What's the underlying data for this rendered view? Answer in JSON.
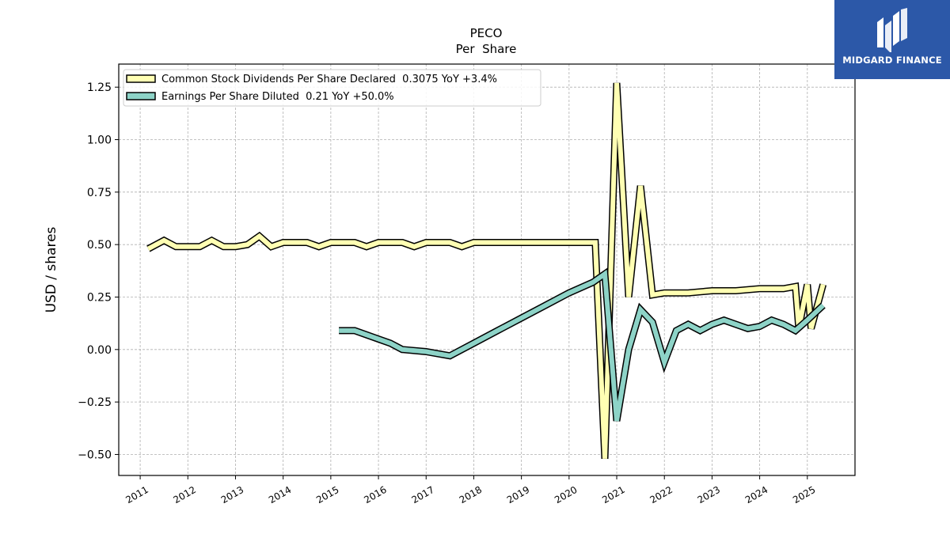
{
  "brand": {
    "name": "MIDGARD FINANCE",
    "bg_color": "#2c58a8"
  },
  "chart_data": {
    "type": "line",
    "title": "PECO",
    "subtitle": "Per  Share",
    "xlabel": "",
    "ylabel": "USD / shares",
    "xlim": [
      2010.55,
      2026.0
    ],
    "ylim": [
      -0.6,
      1.36
    ],
    "x_ticks": [
      "2011",
      "2012",
      "2013",
      "2014",
      "2015",
      "2016",
      "2017",
      "2018",
      "2019",
      "2020",
      "2021",
      "2022",
      "2023",
      "2024",
      "2025"
    ],
    "y_ticks": [
      1.25,
      1.0,
      0.75,
      0.5,
      0.25,
      0.0,
      -0.25,
      -0.5
    ],
    "y_tick_labels": [
      "1.25",
      "1.00",
      "0.75",
      "0.50",
      "0.25",
      "0.00",
      "−0.25",
      "−0.50"
    ],
    "grid": true,
    "legend_position": "top-left",
    "series": [
      {
        "name": "Common Stock Dividends Per Share Declared  0.3075 YoY +3.4%",
        "color": "#ffffb3",
        "x": [
          2011.17,
          2011.5,
          2011.75,
          2012.0,
          2012.25,
          2012.5,
          2012.75,
          2013.0,
          2013.25,
          2013.5,
          2013.75,
          2014.0,
          2014.25,
          2014.5,
          2014.75,
          2015.0,
          2015.25,
          2015.5,
          2015.75,
          2016.0,
          2016.25,
          2016.5,
          2016.75,
          2017.0,
          2017.25,
          2017.5,
          2017.75,
          2018.0,
          2018.5,
          2019.0,
          2019.5,
          2020.0,
          2020.25,
          2020.5,
          2020.55,
          2020.75,
          2021.0,
          2021.25,
          2021.5,
          2021.75,
          2022.0,
          2022.5,
          2023.0,
          2023.5,
          2024.0,
          2024.5,
          2024.75,
          2024.82,
          2025.0,
          2025.08,
          2025.33
        ],
        "values": [
          0.48,
          0.52,
          0.49,
          0.49,
          0.49,
          0.52,
          0.49,
          0.49,
          0.5,
          0.54,
          0.49,
          0.51,
          0.51,
          0.51,
          0.49,
          0.51,
          0.51,
          0.51,
          0.49,
          0.51,
          0.51,
          0.51,
          0.49,
          0.51,
          0.51,
          0.51,
          0.49,
          0.51,
          0.51,
          0.51,
          0.51,
          0.51,
          0.51,
          0.51,
          0.51,
          -0.52,
          1.27,
          0.25,
          0.78,
          0.26,
          0.27,
          0.27,
          0.28,
          0.28,
          0.29,
          0.29,
          0.3,
          0.1,
          0.31,
          0.1,
          0.31
        ]
      },
      {
        "name": "Earnings Per Share Diluted  0.21 YoY +50.0%",
        "color": "#8dd3c7",
        "x": [
          2015.17,
          2015.5,
          2016.0,
          2016.25,
          2016.5,
          2017.0,
          2017.5,
          2018.0,
          2018.5,
          2019.0,
          2019.5,
          2020.0,
          2020.5,
          2020.75,
          2021.0,
          2021.25,
          2021.5,
          2021.75,
          2022.0,
          2022.25,
          2022.5,
          2022.75,
          2023.0,
          2023.25,
          2023.5,
          2023.75,
          2024.0,
          2024.25,
          2024.5,
          2024.75,
          2025.0,
          2025.33
        ],
        "values": [
          0.09,
          0.09,
          0.05,
          0.03,
          0.0,
          -0.01,
          -0.03,
          0.03,
          0.09,
          0.15,
          0.21,
          0.27,
          0.32,
          0.36,
          -0.34,
          0.0,
          0.19,
          0.13,
          -0.06,
          0.09,
          0.12,
          0.09,
          0.12,
          0.14,
          0.12,
          0.1,
          0.11,
          0.14,
          0.12,
          0.09,
          0.14,
          0.21
        ]
      }
    ]
  }
}
